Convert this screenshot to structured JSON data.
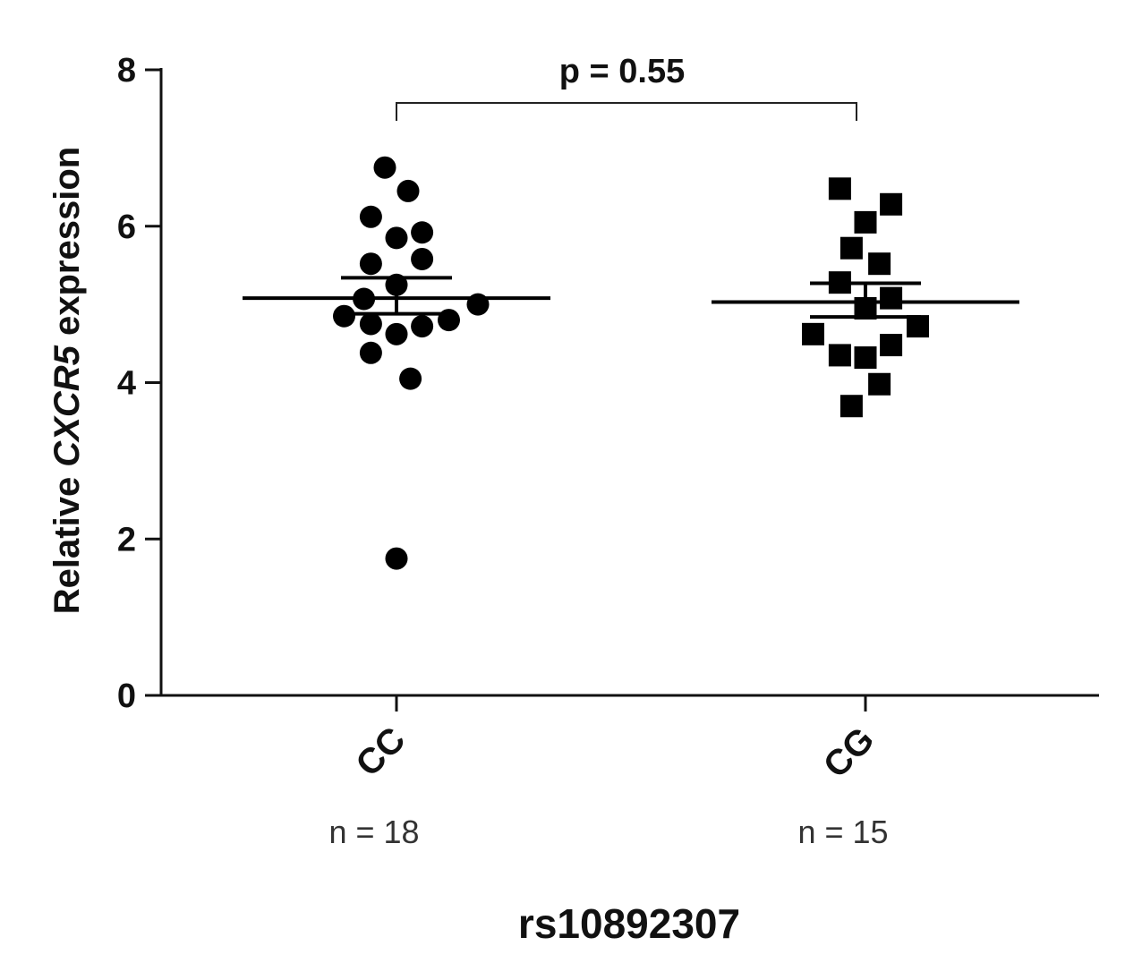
{
  "chart_data": {
    "type": "scatter",
    "subtype": "dot-plot",
    "xlabel": "rs10892307",
    "ylabel": {
      "prefix": "Relative ",
      "gene": "CXCR5",
      "suffix": " expression"
    },
    "ylim": [
      0,
      8
    ],
    "yticks": [
      0,
      2,
      4,
      6,
      8
    ],
    "grid": false,
    "legend": "none",
    "categories": [
      "CC",
      "CG"
    ],
    "group_counts": [
      "n = 18",
      "n = 15"
    ],
    "annotation": "p = 0.55",
    "series": [
      {
        "category": "CC",
        "marker": "circle",
        "mean": 5.08,
        "sem_upper": 5.34,
        "sem_lower": 4.88,
        "points": [
          {
            "offset": 0.0,
            "y": 1.75
          },
          {
            "offset": -0.28,
            "y": 5.07
          },
          {
            "offset": 0.7,
            "y": 5.0
          },
          {
            "offset": -0.45,
            "y": 4.85
          },
          {
            "offset": -0.22,
            "y": 4.75
          },
          {
            "offset": 0.0,
            "y": 4.62
          },
          {
            "offset": 0.22,
            "y": 4.72
          },
          {
            "offset": 0.45,
            "y": 4.8
          },
          {
            "offset": -0.22,
            "y": 4.38
          },
          {
            "offset": 0.12,
            "y": 4.05
          },
          {
            "offset": -0.22,
            "y": 5.52
          },
          {
            "offset": 0.22,
            "y": 5.58
          },
          {
            "offset": 0.0,
            "y": 5.25
          },
          {
            "offset": 0.0,
            "y": 5.85
          },
          {
            "offset": 0.22,
            "y": 5.92
          },
          {
            "offset": -0.22,
            "y": 6.12
          },
          {
            "offset": 0.1,
            "y": 6.45
          },
          {
            "offset": -0.1,
            "y": 6.75
          }
        ]
      },
      {
        "category": "CG",
        "marker": "square",
        "mean": 5.03,
        "sem_upper": 5.27,
        "sem_lower": 4.84,
        "points": [
          {
            "offset": -0.22,
            "y": 6.48
          },
          {
            "offset": 0.22,
            "y": 6.28
          },
          {
            "offset": 0.0,
            "y": 6.05
          },
          {
            "offset": -0.12,
            "y": 5.72
          },
          {
            "offset": 0.12,
            "y": 5.52
          },
          {
            "offset": -0.22,
            "y": 5.28
          },
          {
            "offset": 0.22,
            "y": 5.08
          },
          {
            "offset": 0.0,
            "y": 4.95
          },
          {
            "offset": -0.45,
            "y": 4.62
          },
          {
            "offset": 0.45,
            "y": 4.72
          },
          {
            "offset": -0.22,
            "y": 4.35
          },
          {
            "offset": 0.0,
            "y": 4.32
          },
          {
            "offset": 0.22,
            "y": 4.48
          },
          {
            "offset": 0.12,
            "y": 3.98
          },
          {
            "offset": -0.12,
            "y": 3.7
          }
        ]
      }
    ]
  }
}
